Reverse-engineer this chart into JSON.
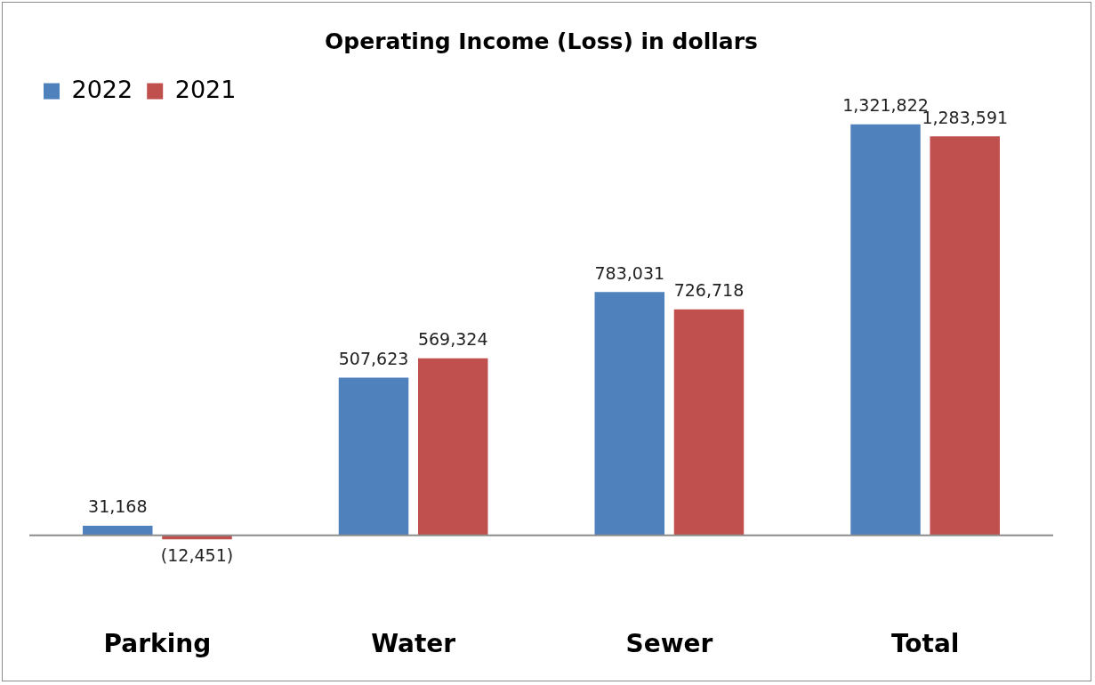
{
  "chart_data": {
    "type": "bar",
    "title": "Operating Income (Loss) in dollars",
    "categories": [
      "Parking",
      "Water",
      "Sewer",
      "Total"
    ],
    "series": [
      {
        "name": "2022",
        "color": "#4f81bd",
        "values": [
          31168,
          507623,
          783031,
          1321822
        ],
        "value_labels": [
          "31,168",
          "507,623",
          "783,031",
          "1,321,822"
        ]
      },
      {
        "name": "2021",
        "color": "#c0504d",
        "values": [
          -12451,
          569324,
          726718,
          1283591
        ],
        "value_labels": [
          "(12,451)",
          "569,324",
          "726,718",
          "1,283,591"
        ]
      }
    ],
    "legend": "top left",
    "grid": false
  }
}
